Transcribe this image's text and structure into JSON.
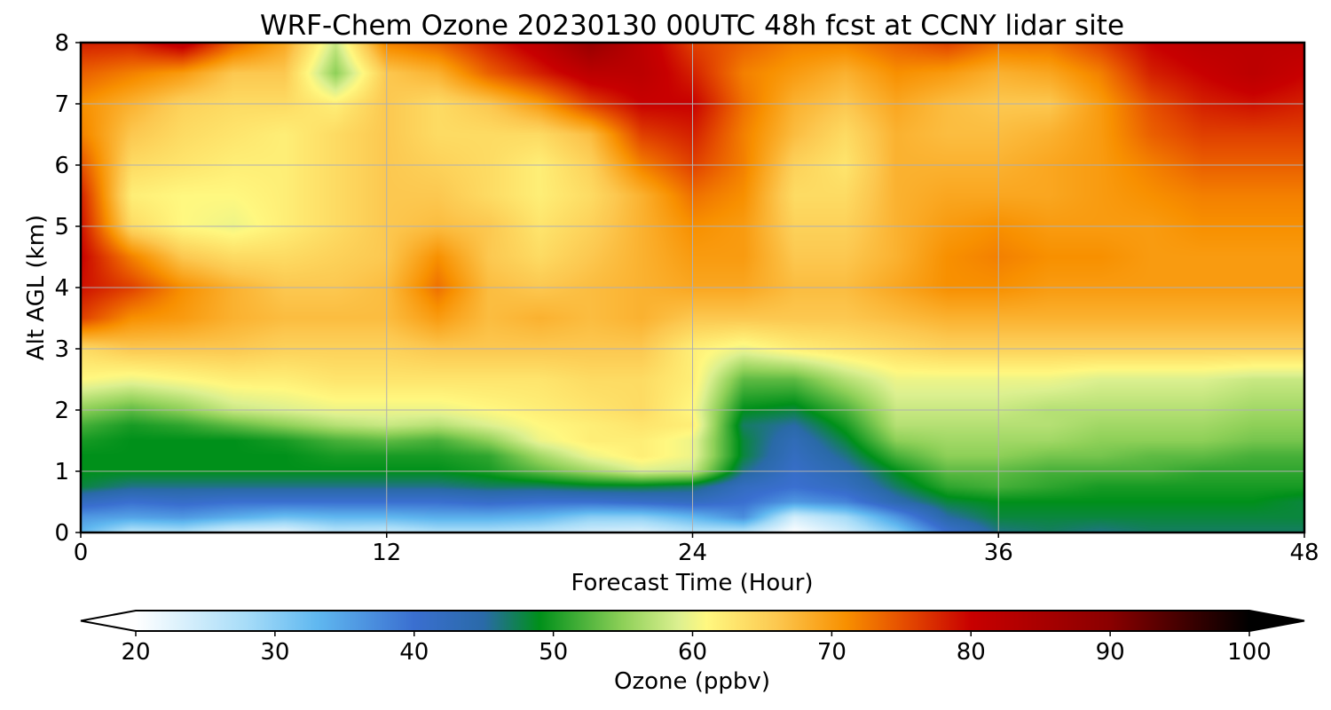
{
  "chart_data": {
    "type": "heatmap",
    "title": "WRF-Chem Ozone  20230130 00UTC 48h fcst at CCNY lidar site",
    "xlabel": "Forecast Time (Hour)",
    "ylabel": "Alt AGL (km)",
    "xlim": [
      0,
      48
    ],
    "ylim": [
      0,
      8
    ],
    "xticks": [
      "0",
      "12",
      "24",
      "36",
      "48"
    ],
    "yticks": [
      "0",
      "1",
      "2",
      "3",
      "4",
      "5",
      "6",
      "7",
      "8"
    ],
    "grid": true,
    "colorbar": {
      "label": "Ozone  (ppbv)",
      "range": [
        20,
        100
      ],
      "ticks": [
        "20",
        "30",
        "40",
        "50",
        "60",
        "70",
        "80",
        "90",
        "100"
      ],
      "extend": "both",
      "stops": [
        [
          20,
          "#ffffff"
        ],
        [
          28,
          "#a6dcf8"
        ],
        [
          33,
          "#60b8f0"
        ],
        [
          40,
          "#3a6fd0"
        ],
        [
          45,
          "#2a6aa8"
        ],
        [
          49,
          "#00901a"
        ],
        [
          55,
          "#8ed058"
        ],
        [
          59,
          "#dcf090"
        ],
        [
          61,
          "#fff880"
        ],
        [
          66,
          "#fcc850"
        ],
        [
          71,
          "#f89000"
        ],
        [
          75,
          "#e65000"
        ],
        [
          80,
          "#c80000"
        ],
        [
          90,
          "#8a0000"
        ],
        [
          100,
          "#000000"
        ]
      ]
    },
    "x": [
      0,
      2,
      4,
      6,
      8,
      10,
      12,
      14,
      16,
      18,
      20,
      22,
      24,
      26,
      28,
      30,
      32,
      34,
      36,
      38,
      40,
      42,
      44,
      46,
      48
    ],
    "y": [
      0,
      0.25,
      0.5,
      0.75,
      1,
      1.25,
      1.5,
      1.75,
      2,
      2.5,
      3,
      3.5,
      4,
      4.5,
      5,
      5.5,
      6,
      6.5,
      7,
      7.5,
      8
    ],
    "z": [
      [
        33,
        26,
        27,
        23,
        22,
        26,
        25,
        27,
        27,
        26,
        24,
        23,
        26,
        26,
        20,
        24,
        30,
        40,
        46,
        47,
        46,
        47,
        47,
        47,
        47
      ],
      [
        36,
        35,
        36,
        34,
        32,
        33,
        33,
        34,
        34,
        33,
        30,
        30,
        33,
        37,
        24,
        28,
        36,
        45,
        48,
        48,
        48,
        48,
        48,
        48,
        48
      ],
      [
        42,
        40,
        41,
        40,
        40,
        40,
        40,
        40,
        41,
        40,
        40,
        41,
        42,
        40,
        36,
        38,
        44,
        48,
        49,
        49,
        49,
        49,
        49,
        49,
        48
      ],
      [
        48,
        46,
        46,
        46,
        46,
        46,
        46,
        46,
        47,
        47,
        48,
        48,
        47,
        42,
        40,
        42,
        47,
        51,
        52,
        51,
        50,
        50,
        50,
        50,
        50
      ],
      [
        49,
        49,
        49,
        49,
        49,
        49,
        49,
        49,
        50,
        53,
        56,
        59,
        58,
        46,
        41,
        44,
        49,
        53,
        53,
        52,
        52,
        52,
        51,
        51,
        51
      ],
      [
        49,
        49,
        49,
        49,
        49,
        50,
        50,
        50,
        51,
        56,
        60,
        62,
        60,
        48,
        42,
        46,
        52,
        55,
        55,
        54,
        54,
        53,
        53,
        52,
        52
      ],
      [
        50,
        49,
        49,
        49,
        50,
        52,
        53,
        52,
        55,
        60,
        62,
        62,
        60,
        48,
        43,
        48,
        55,
        56,
        56,
        56,
        55,
        55,
        55,
        54,
        54
      ],
      [
        52,
        50,
        51,
        53,
        55,
        57,
        58,
        57,
        59,
        61,
        62,
        63,
        62,
        47,
        45,
        50,
        57,
        57,
        57,
        57,
        56,
        56,
        56,
        55,
        55
      ],
      [
        55,
        53,
        55,
        58,
        59,
        60,
        60,
        60,
        61,
        62,
        63,
        64,
        61,
        49,
        48,
        52,
        58,
        58,
        58,
        57,
        57,
        57,
        57,
        56,
        56
      ],
      [
        61,
        60,
        61,
        62,
        62,
        63,
        63,
        63,
        63,
        63,
        64,
        64,
        62,
        53,
        53,
        57,
        60,
        60,
        60,
        60,
        59,
        59,
        59,
        58,
        58
      ],
      [
        64,
        66,
        66,
        66,
        65,
        65,
        65,
        66,
        66,
        66,
        66,
        66,
        62,
        60,
        62,
        63,
        64,
        65,
        65,
        65,
        65,
        65,
        65,
        65,
        65
      ],
      [
        76,
        71,
        70,
        68,
        67,
        67,
        67,
        70,
        67,
        68,
        67,
        68,
        66,
        66,
        66,
        66,
        67,
        68,
        68,
        68,
        68,
        68,
        68,
        68,
        68
      ],
      [
        79,
        76,
        71,
        68,
        66,
        66,
        67,
        73,
        67,
        66,
        67,
        68,
        69,
        69,
        67,
        67,
        69,
        71,
        71,
        70,
        70,
        70,
        70,
        70,
        70
      ],
      [
        80,
        72,
        66,
        64,
        64,
        65,
        66,
        71,
        66,
        64,
        66,
        68,
        70,
        70,
        66,
        66,
        68,
        71,
        72,
        71,
        71,
        70,
        70,
        70,
        70
      ],
      [
        79,
        64,
        61,
        60,
        62,
        64,
        66,
        67,
        66,
        63,
        65,
        68,
        71,
        70,
        65,
        65,
        68,
        70,
        71,
        70,
        70,
        70,
        71,
        71,
        71
      ],
      [
        78,
        62,
        61,
        61,
        62,
        64,
        66,
        66,
        64,
        62,
        64,
        68,
        73,
        71,
        64,
        64,
        68,
        69,
        69,
        69,
        70,
        71,
        72,
        72,
        72
      ],
      [
        75,
        64,
        63,
        62,
        62,
        64,
        66,
        65,
        64,
        62,
        65,
        72,
        76,
        72,
        65,
        63,
        68,
        68,
        68,
        69,
        70,
        72,
        74,
        74,
        74
      ],
      [
        72,
        66,
        64,
        63,
        62,
        64,
        66,
        64,
        64,
        64,
        67,
        76,
        78,
        72,
        67,
        64,
        68,
        67,
        67,
        68,
        70,
        74,
        76,
        76,
        76
      ],
      [
        71,
        68,
        65,
        64,
        64,
        62,
        66,
        64,
        66,
        70,
        76,
        80,
        80,
        73,
        68,
        66,
        69,
        67,
        66,
        66,
        70,
        75,
        78,
        79,
        78
      ],
      [
        74,
        72,
        70,
        66,
        66,
        55,
        66,
        68,
        74,
        78,
        82,
        82,
        78,
        72,
        70,
        68,
        71,
        70,
        68,
        69,
        72,
        78,
        80,
        82,
        80
      ],
      [
        78,
        78,
        82,
        74,
        69,
        58,
        72,
        74,
        78,
        82,
        88,
        82,
        76,
        74,
        72,
        72,
        74,
        76,
        73,
        73,
        76,
        80,
        82,
        82,
        82
      ]
    ]
  }
}
